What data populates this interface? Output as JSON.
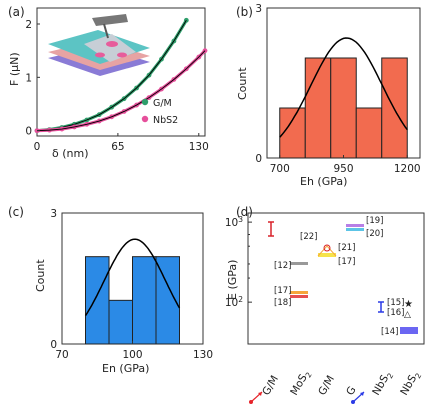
{
  "panels": {
    "a": "(a)",
    "b": "(b)",
    "c": "(c)",
    "d": "(d)"
  },
  "chart_data": [
    {
      "panel": "a",
      "type": "scatter",
      "xlabel": "δ (nm)",
      "ylabel": "F (μN)",
      "xlim": [
        0,
        135
      ],
      "ylim": [
        -0.1,
        2.3
      ],
      "xticks": [
        "0",
        "65",
        "130"
      ],
      "yticks": [
        "0",
        "1",
        "2"
      ],
      "legend_position": "bottom-right",
      "series": [
        {
          "name": "G/M",
          "color": "#2e9e6b",
          "x": [
            0,
            10,
            20,
            30,
            40,
            50,
            60,
            70,
            80,
            90,
            100,
            110,
            120
          ],
          "y": [
            0,
            0.02,
            0.06,
            0.12,
            0.2,
            0.3,
            0.44,
            0.6,
            0.8,
            1.04,
            1.34,
            1.68,
            2.07
          ]
        },
        {
          "name": "NbS2",
          "color": "#e64f9b",
          "x": [
            0,
            10,
            20,
            30,
            40,
            50,
            60,
            70,
            80,
            90,
            100,
            110,
            120,
            130,
            135
          ],
          "y": [
            0,
            0.01,
            0.03,
            0.07,
            0.12,
            0.18,
            0.26,
            0.36,
            0.48,
            0.62,
            0.78,
            0.96,
            1.16,
            1.38,
            1.5
          ]
        }
      ],
      "legend": [
        "G/M",
        "NbS2"
      ]
    },
    {
      "panel": "b",
      "type": "bar",
      "xlabel": "Eh (GPa)",
      "ylabel": "Count",
      "xlim": [
        650,
        1250
      ],
      "ylim": [
        0,
        3
      ],
      "xticks": [
        "700",
        "950",
        "1200"
      ],
      "yticks": [
        "0",
        "3"
      ],
      "bar_color": "#f26b4f",
      "bins": [
        700,
        800,
        900,
        1000,
        1100
      ],
      "bin_width": 100,
      "values": [
        1,
        2,
        2,
        1,
        2
      ],
      "fit": {
        "type": "gaussian",
        "mean": 962,
        "sd": 140,
        "peak": 2.4
      }
    },
    {
      "panel": "c",
      "type": "bar",
      "xlabel": "En (GPa)",
      "ylabel": "Count",
      "xlim": [
        70,
        130
      ],
      "ylim": [
        0,
        3
      ],
      "xticks": [
        "70",
        "100",
        "130"
      ],
      "yticks": [
        "0",
        "3"
      ],
      "bar_color": "#2b8ae6",
      "bins": [
        80,
        90,
        100,
        110
      ],
      "bin_width": 10,
      "values": [
        2,
        1,
        2,
        2
      ],
      "fit": {
        "type": "gaussian",
        "mean": 101,
        "sd": 13,
        "peak": 2.4
      }
    },
    {
      "panel": "d",
      "type": "scatter",
      "ylabel": "E (GPa)",
      "ylim": [
        30,
        1300
      ],
      "yscale": "log",
      "yticks": [
        "10^2",
        "10^3"
      ],
      "categories": [
        "G/M",
        "MoS2",
        "G/M",
        "G",
        "NbS2",
        "NbS2"
      ],
      "annotations": [
        {
          "label": "[12]",
          "value": 350
        },
        {
          "label": "[17]",
          "value": 150
        },
        {
          "label": "[18]",
          "value": 125
        },
        {
          "label": "[19]",
          "value": 1030
        },
        {
          "label": "[20]",
          "value": 920
        },
        {
          "label": "[21]",
          "value": 530
        },
        {
          "label": "[22]",
          "value": 640
        },
        {
          "label": "[17]",
          "value": 430
        },
        {
          "label": "[15]",
          "value": 110
        },
        {
          "label": "[16]",
          "value": 95
        },
        {
          "label": "[14]",
          "value": 55
        }
      ]
    }
  ]
}
